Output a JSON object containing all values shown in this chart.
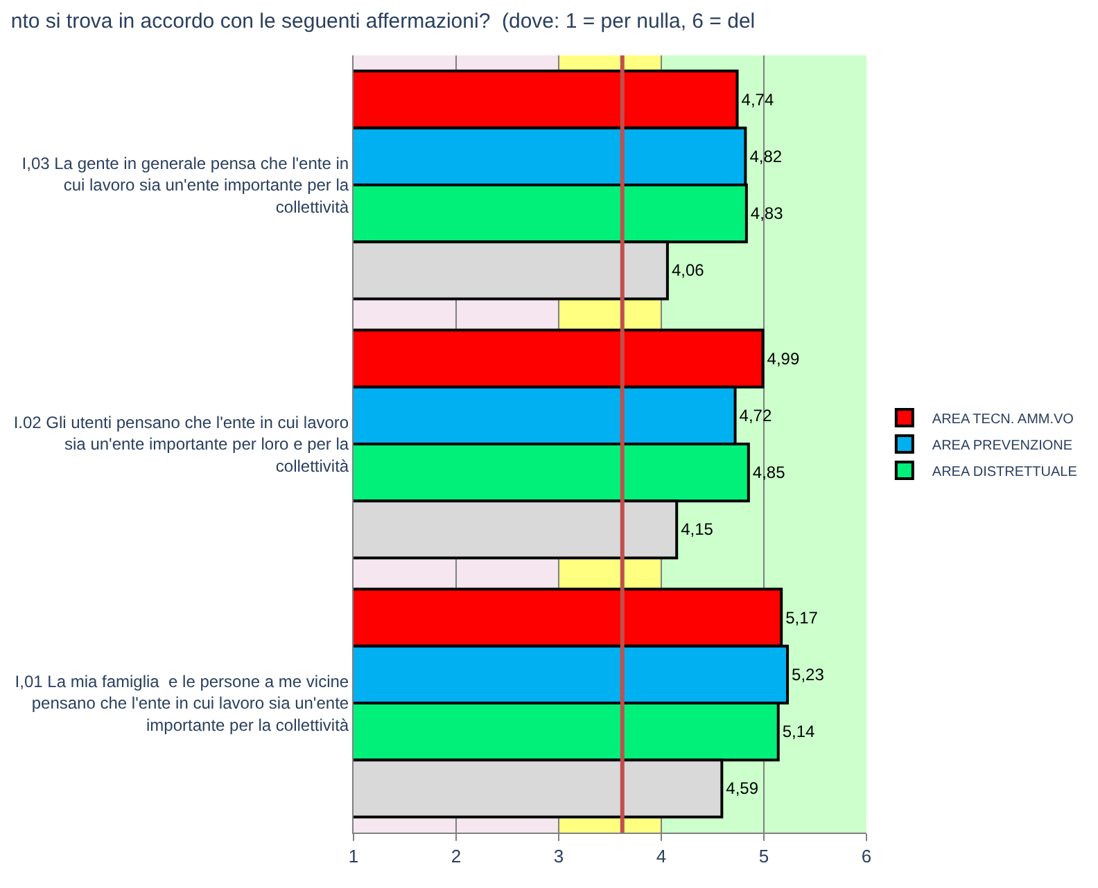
{
  "chart_data": {
    "type": "bar",
    "orientation": "horizontal",
    "title": "nto si trova in accordo con le seguenti affermazioni?  (dove: 1 = per nulla, 6 = del",
    "categories": [
      "I,03 La gente in generale pensa che l'ente in cui lavoro sia un'ente importante per la collettività",
      "I.02 Gli utenti pensano che l'ente in cui lavoro sia un'ente importante per loro e per la collettività",
      "I,01 La mia famiglia  e le persone a me vicine pensano che l'ente in cui lavoro sia un'ente importante per la collettività"
    ],
    "series": [
      {
        "name": "AREA TECN. AMM.VO",
        "color": "#ff0000",
        "values": [
          4.74,
          4.99,
          5.17
        ],
        "value_labels": [
          "4,74",
          "4,99",
          "5,17"
        ]
      },
      {
        "name": "AREA PREVENZIONE",
        "color": "#00b0f0",
        "values": [
          4.82,
          4.72,
          5.23
        ],
        "value_labels": [
          "4,82",
          "4,72",
          "5,23"
        ]
      },
      {
        "name": "AREA DISTRETTUALE",
        "color": "#00f07a",
        "values": [
          4.83,
          4.85,
          5.14
        ],
        "value_labels": [
          "4,83",
          "4,85",
          "5,14"
        ]
      },
      {
        "color": "#d9d9d9",
        "values": [
          4.06,
          4.15,
          4.59
        ],
        "value_labels": [
          "4,06",
          "4,15",
          "4,59"
        ]
      }
    ],
    "xlim": [
      1,
      6
    ],
    "xticks": [
      1,
      2,
      3,
      4,
      5,
      6
    ],
    "grid": "x",
    "legend": "right",
    "bands": [
      {
        "axis": "x",
        "from": 1,
        "to": 3,
        "color": "#f5e6f0"
      },
      {
        "axis": "x",
        "from": 3,
        "to": 4,
        "color": "#ffff80"
      },
      {
        "axis": "x",
        "from": 4,
        "to": 6,
        "color": "#ccffcc"
      }
    ],
    "ref_lines": [
      {
        "axis": "x",
        "value": 3.62,
        "color": "#c0504d"
      }
    ]
  }
}
